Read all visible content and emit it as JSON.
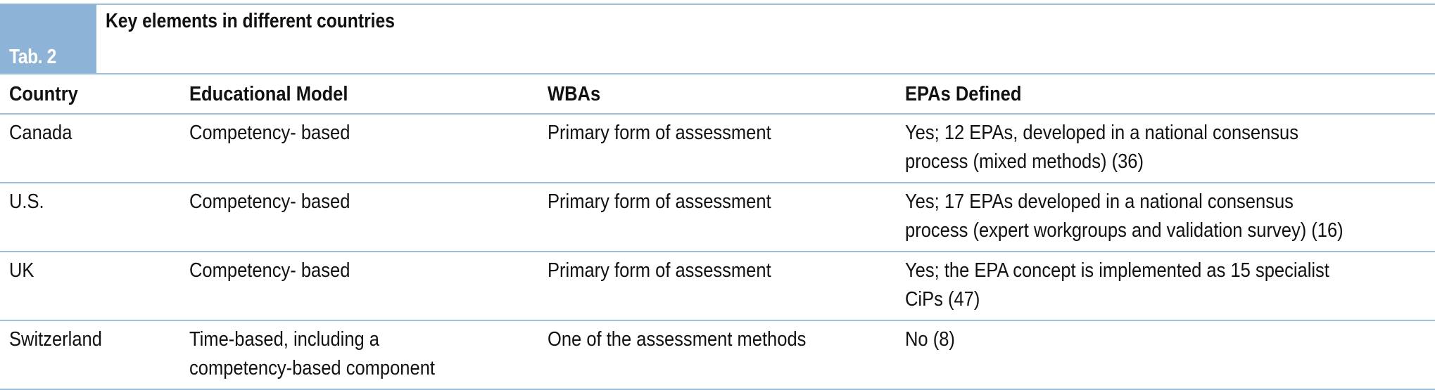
{
  "table": {
    "label": "Tab. 2",
    "title": "Key elements in different countries",
    "accent_color": "#8db4d6",
    "headers": [
      "Country",
      "Educational Model",
      "WBAs",
      "EPAs Defined"
    ],
    "rows": [
      {
        "country": "Canada",
        "model": [
          "Competency- based"
        ],
        "wbas": "Primary form of assessment",
        "epas": [
          "Yes; 12 EPAs, developed in a national consensus",
          "process (mixed methods) (36)"
        ]
      },
      {
        "country": "U.S.",
        "model": [
          "Competency- based"
        ],
        "wbas": "Primary form of assessment",
        "epas": [
          "Yes; 17 EPAs developed in a national consensus",
          "process (expert workgroups and validation survey) (16)"
        ]
      },
      {
        "country": "UK",
        "model": [
          "Competency- based"
        ],
        "wbas": "Primary form of assessment",
        "epas": [
          "Yes; the EPA concept is implemented as 15 specialist",
          "CiPs (47)"
        ]
      },
      {
        "country": "Switzerland",
        "model": [
          "Time-based, including a",
          "competency-based component"
        ],
        "wbas": "One of the assessment methods",
        "epas": [
          "No (8)"
        ]
      }
    ]
  }
}
